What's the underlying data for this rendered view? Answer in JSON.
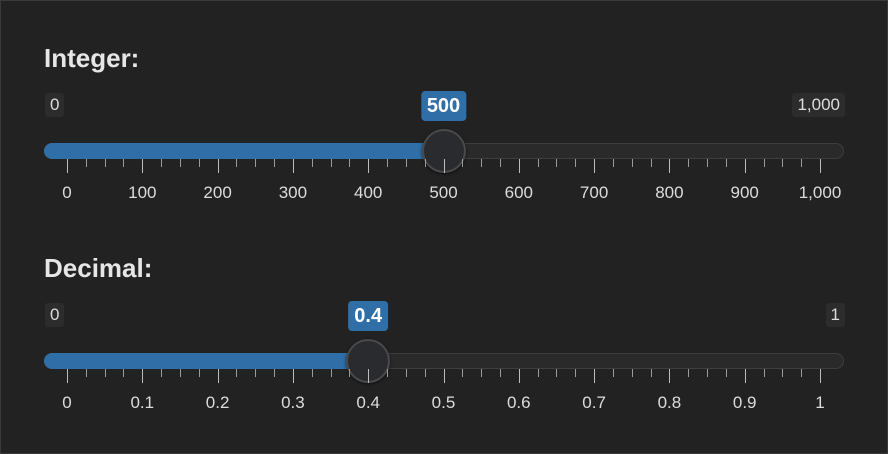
{
  "sliders": [
    {
      "label": "Integer:",
      "min_label": "0",
      "max_label": "1,000",
      "value_label": "500",
      "min": 0,
      "max": 1000,
      "value": 500,
      "ticks": [
        "0",
        "100",
        "200",
        "300",
        "400",
        "500",
        "600",
        "700",
        "800",
        "900",
        "1,000"
      ]
    },
    {
      "label": "Decimal:",
      "min_label": "0",
      "max_label": "1",
      "value_label": "0.4",
      "min": 0,
      "max": 1,
      "value": 0.4,
      "ticks": [
        "0",
        "0.1",
        "0.2",
        "0.3",
        "0.4",
        "0.5",
        "0.6",
        "0.7",
        "0.8",
        "0.9",
        "1"
      ]
    }
  ],
  "colors": {
    "background": "#222222",
    "accent": "#2f6ea6",
    "text": "#dcdcdc"
  }
}
